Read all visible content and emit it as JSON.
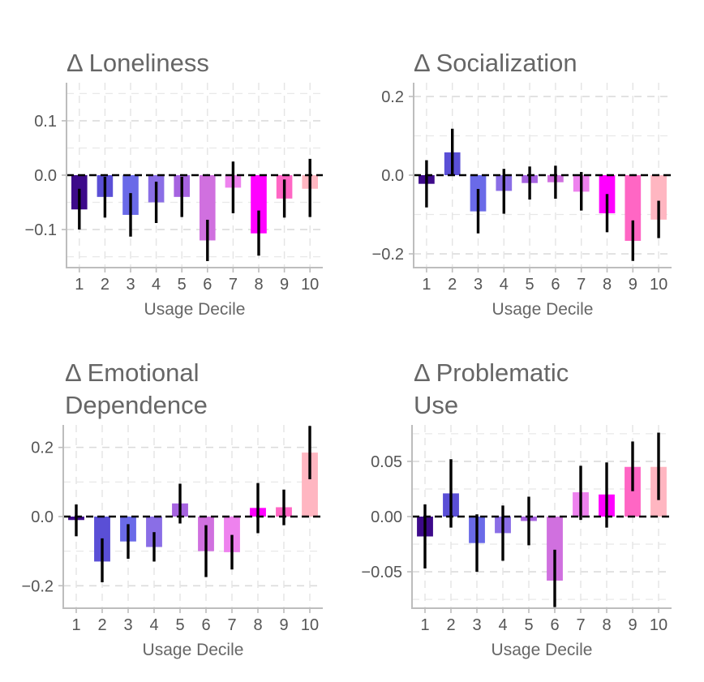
{
  "colors": [
    "#3d0a8a",
    "#5a4fd6",
    "#6a6ae8",
    "#8a6ee6",
    "#a663e0",
    "#d070df",
    "#ee82ee",
    "#ff00ff",
    "#ff66c4",
    "#ffb6c1"
  ],
  "chart_data": [
    {
      "type": "bar",
      "title": "Δ Loneliness",
      "xlabel": "Usage Decile",
      "ylabel": "",
      "categories": [
        "1",
        "2",
        "3",
        "4",
        "5",
        "6",
        "7",
        "8",
        "9",
        "10"
      ],
      "values": [
        -0.063,
        -0.04,
        -0.073,
        -0.05,
        -0.04,
        -0.12,
        -0.023,
        -0.107,
        -0.043,
        -0.025
      ],
      "error_low": [
        -0.1,
        -0.078,
        -0.113,
        -0.088,
        -0.077,
        -0.158,
        -0.07,
        -0.148,
        -0.078,
        -0.077
      ],
      "error_high": [
        -0.025,
        -0.003,
        -0.033,
        -0.012,
        -0.003,
        -0.082,
        0.025,
        -0.065,
        -0.008,
        0.03
      ],
      "yticks": [
        0.1,
        0.0,
        -0.1
      ],
      "ytick_labels": [
        "0.1",
        "0.0",
        "−0.1"
      ],
      "ylim": [
        -0.17,
        0.17
      ],
      "grid": true
    },
    {
      "type": "bar",
      "title": "Δ Socialization",
      "xlabel": "Usage Decile",
      "ylabel": "",
      "categories": [
        "1",
        "2",
        "3",
        "4",
        "5",
        "6",
        "7",
        "8",
        "9",
        "10"
      ],
      "values": [
        -0.022,
        0.058,
        -0.092,
        -0.04,
        -0.02,
        -0.018,
        -0.042,
        -0.097,
        -0.167,
        -0.113
      ],
      "error_low": [
        -0.082,
        -0.002,
        -0.148,
        -0.098,
        -0.062,
        -0.06,
        -0.09,
        -0.145,
        -0.218,
        -0.16
      ],
      "error_high": [
        0.038,
        0.118,
        -0.035,
        0.016,
        0.022,
        0.024,
        0.008,
        -0.048,
        -0.115,
        -0.065
      ],
      "yticks": [
        0.2,
        0.0,
        -0.2
      ],
      "ytick_labels": [
        "0.2",
        "0.0",
        "−0.2"
      ],
      "ylim": [
        -0.235,
        0.235
      ],
      "grid": true
    },
    {
      "type": "bar",
      "title": "Δ Emotional Dependence",
      "title_lines": [
        "Δ Emotional",
        "Dependence"
      ],
      "xlabel": "Usage Decile",
      "ylabel": "",
      "categories": [
        "1",
        "2",
        "3",
        "4",
        "5",
        "6",
        "7",
        "8",
        "9",
        "10"
      ],
      "values": [
        -0.01,
        -0.13,
        -0.072,
        -0.088,
        0.038,
        -0.1,
        -0.103,
        0.025,
        0.027,
        0.185
      ],
      "error_low": [
        -0.057,
        -0.19,
        -0.122,
        -0.13,
        -0.02,
        -0.175,
        -0.153,
        -0.048,
        -0.025,
        0.108
      ],
      "error_high": [
        0.035,
        -0.063,
        -0.022,
        -0.045,
        0.095,
        -0.025,
        -0.053,
        0.097,
        0.078,
        0.262
      ],
      "yticks": [
        0.2,
        0.0,
        -0.2
      ],
      "ytick_labels": [
        "0.2",
        "0.0",
        "−0.2"
      ],
      "ylim": [
        -0.265,
        0.265
      ],
      "grid": true
    },
    {
      "type": "bar",
      "title": "Δ Problematic Use",
      "title_lines": [
        "Δ Problematic",
        "Use"
      ],
      "xlabel": "Usage Decile",
      "ylabel": "",
      "categories": [
        "1",
        "2",
        "3",
        "4",
        "5",
        "6",
        "7",
        "8",
        "9",
        "10"
      ],
      "values": [
        -0.018,
        0.021,
        -0.024,
        -0.015,
        -0.004,
        -0.058,
        0.022,
        0.02,
        0.045,
        0.045
      ],
      "error_low": [
        -0.047,
        -0.01,
        -0.05,
        -0.04,
        -0.026,
        -0.082,
        -0.003,
        -0.01,
        0.023,
        0.015
      ],
      "error_high": [
        0.011,
        0.052,
        0.002,
        0.01,
        0.018,
        -0.03,
        0.046,
        0.049,
        0.068,
        0.076
      ],
      "yticks": [
        0.05,
        0.0,
        -0.05
      ],
      "ytick_labels": [
        "0.05",
        "0.00",
        "−0.05"
      ],
      "ylim": [
        -0.083,
        0.083
      ],
      "grid": true
    }
  ]
}
